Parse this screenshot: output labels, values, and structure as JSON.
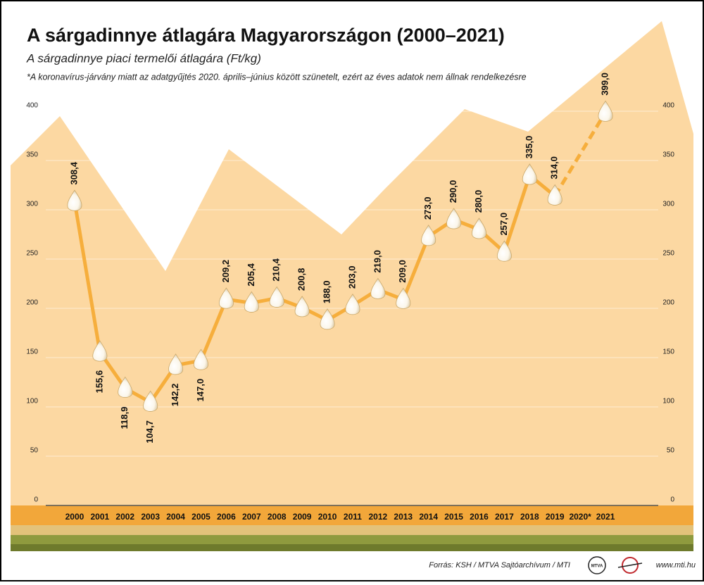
{
  "chart_data": {
    "type": "line",
    "title": "A sárgadinnye átlagára Magyarországon (2000–2021)",
    "subtitle": "A sárgadinnye piaci termelői átlagára (Ft/kg)",
    "note": "*A koronavírus-járvány miatt az adatgyűjtés 2020. április–június között szünetelt, ezért az éves adatok nem állnak rendelkezésre",
    "categories": [
      "2000",
      "2001",
      "2002",
      "2003",
      "2004",
      "2005",
      "2006",
      "2007",
      "2008",
      "2009",
      "2010",
      "2011",
      "2012",
      "2013",
      "2014",
      "2015",
      "2016",
      "2017",
      "2018",
      "2019",
      "2020*",
      "2021"
    ],
    "values": [
      308.4,
      155.6,
      118.9,
      104.7,
      142.2,
      147.0,
      209.2,
      205.4,
      210.4,
      200.8,
      188.0,
      203.0,
      219.0,
      209.0,
      273.0,
      290.0,
      280.0,
      257.0,
      335.0,
      314.0,
      null,
      399.0
    ],
    "value_labels": [
      "308,4",
      "155,6",
      "118,9",
      "104,7",
      "142,2",
      "147,0",
      "209,2",
      "205,4",
      "210,4",
      "200,8",
      "188,0",
      "203,0",
      "219,0",
      "209,0",
      "273,0",
      "290,0",
      "280,0",
      "257,0",
      "335,0",
      "314,0",
      null,
      "399,0"
    ],
    "color": "#f6ae3c",
    "ylim": [
      0,
      400
    ],
    "yticks": [
      0,
      50,
      100,
      150,
      200,
      250,
      300,
      350,
      400
    ],
    "grid": true,
    "source": "Forrás: KSH / MTVA Sajtóarchívum / MTI",
    "logo_text": "MTVA",
    "website": "www.mti.hu"
  }
}
